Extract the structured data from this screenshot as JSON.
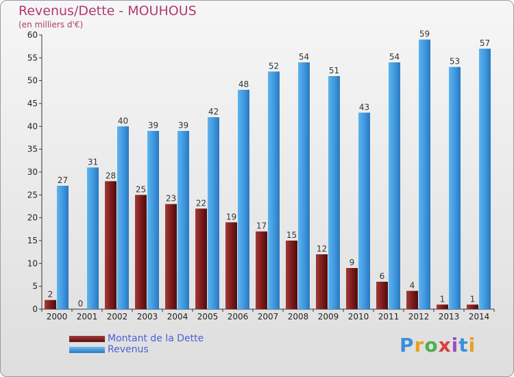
{
  "header": {
    "title": "Revenus/Dette - MOUHOUS",
    "subtitle": "(en milliers d'€)"
  },
  "logo": {
    "text": "Proxiti"
  },
  "legend": {
    "items": [
      {
        "label": "Montant de la Dette",
        "color": "#7a1a1a"
      },
      {
        "label": "Revenus",
        "color": "#3e97dd"
      }
    ]
  },
  "chart_data": {
    "type": "bar",
    "title": "Revenus/Dette - MOUHOUS",
    "ylabel": "(en milliers d'€)",
    "ylim": [
      0,
      60
    ],
    "yticks": [
      0,
      5,
      10,
      15,
      20,
      25,
      30,
      35,
      40,
      45,
      50,
      55,
      60
    ],
    "grid": false,
    "legend_position": "bottom-left",
    "categories": [
      "2000",
      "2001",
      "2002",
      "2003",
      "2004",
      "2005",
      "2006",
      "2007",
      "2008",
      "2009",
      "2010",
      "2011",
      "2012",
      "2013",
      "2014"
    ],
    "series": [
      {
        "name": "Montant de la Dette",
        "color": "#7a1a1a",
        "values": [
          2,
          0,
          28,
          25,
          23,
          22,
          19,
          17,
          15,
          12,
          9,
          6,
          4,
          1,
          1
        ]
      },
      {
        "name": "Revenus",
        "color": "#3e97dd",
        "values": [
          27,
          31,
          40,
          39,
          39,
          42,
          48,
          52,
          54,
          51,
          43,
          54,
          59,
          53,
          57
        ]
      }
    ]
  }
}
